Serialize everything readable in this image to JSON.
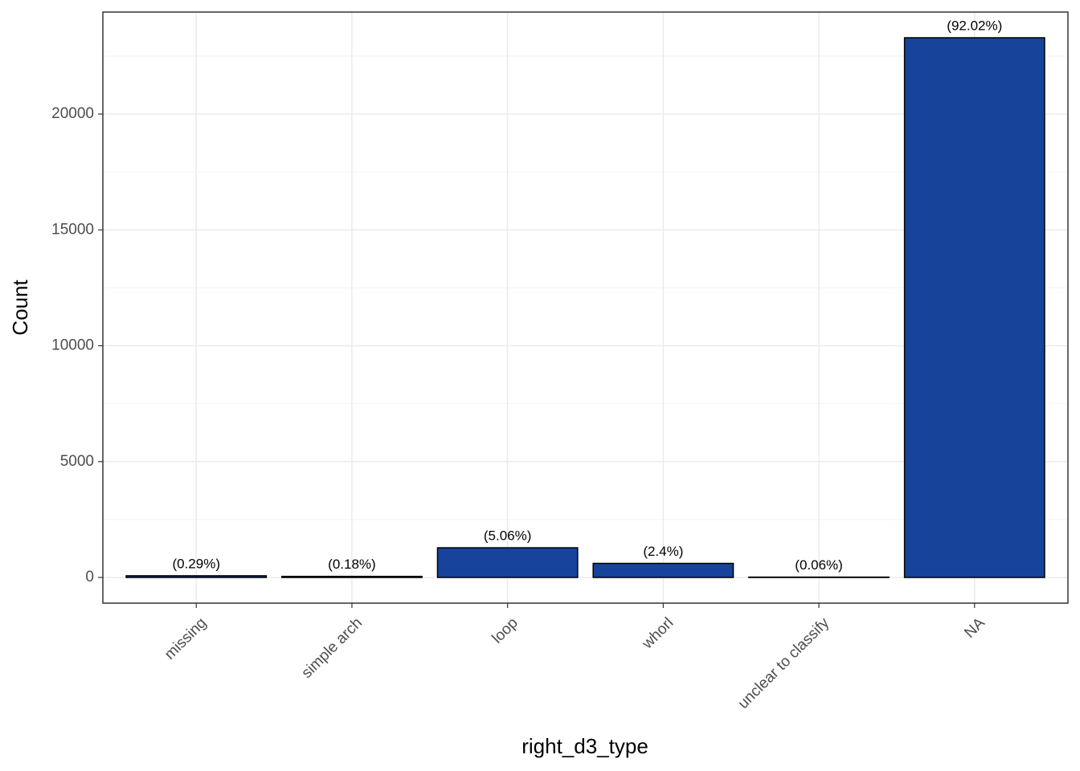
{
  "chart_data": {
    "type": "bar",
    "x_label": "right_d3_type",
    "y_label": "Count",
    "categories": [
      "missing",
      "simple arch",
      "loop",
      "whorl",
      "unclear to classify",
      "NA"
    ],
    "values": [
      73,
      46,
      1281,
      607,
      15,
      23293
    ],
    "annotations": [
      "(0.29%)",
      "(0.18%)",
      "(5.06%)",
      "(2.4%)",
      "(0.06%)",
      "(92.02%)"
    ],
    "color": "#17439b",
    "ylim": [
      -1109,
      24402
    ],
    "yticks": [
      0,
      5000,
      10000,
      15000,
      20000
    ],
    "minor_yticks": [
      2500,
      7500,
      12500,
      17500,
      22500
    ],
    "grid": true
  }
}
